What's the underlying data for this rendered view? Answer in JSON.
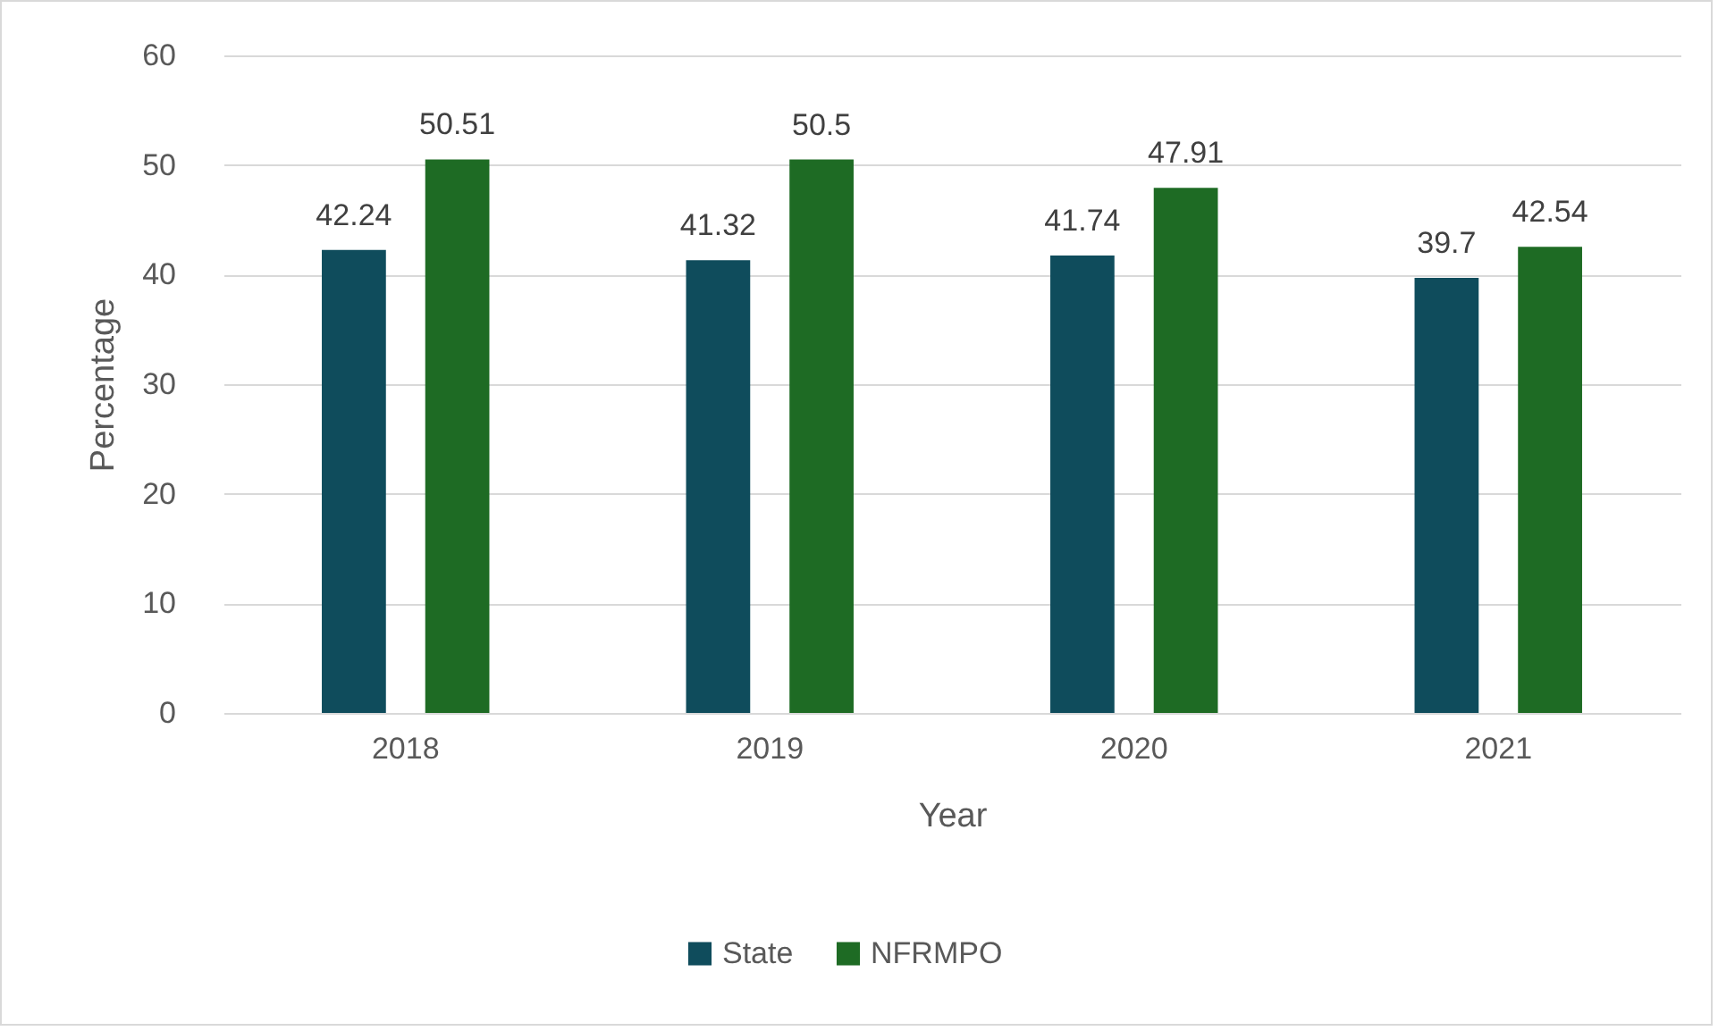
{
  "chart_data": {
    "type": "bar",
    "xlabel": "Year",
    "ylabel": "Percentage",
    "categories": [
      "2018",
      "2019",
      "2020",
      "2021"
    ],
    "series": [
      {
        "name": "State",
        "color": "#0f4c5c",
        "values": [
          42.24,
          41.32,
          41.74,
          39.7
        ]
      },
      {
        "name": "NFRMPO",
        "color": "#1e6b24",
        "values": [
          50.51,
          50.5,
          47.91,
          42.54
        ]
      }
    ],
    "ylim": [
      0,
      60
    ],
    "yticks": [
      0,
      10,
      20,
      30,
      40,
      50,
      60
    ],
    "grid": "y",
    "legend": "bottom",
    "data_labels": true
  }
}
